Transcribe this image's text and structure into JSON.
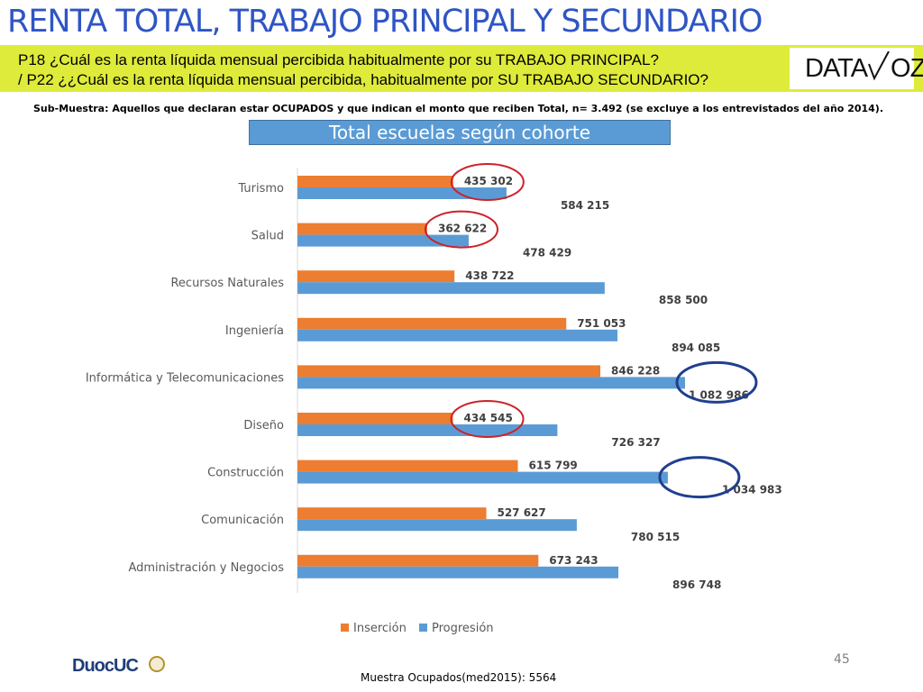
{
  "header": {
    "title": "RENTA TOTAL, TRABAJO PRINCIPAL Y SECUNDARIO",
    "question_1": "P18 ¿Cuál es la renta líquida mensual percibida habitualmente por su TRABAJO PRINCIPAL?",
    "question_2": "/ P22 ¿¿Cuál es la  renta líquida mensual percibida, habitualmente por  SU TRABAJO SECUNDARIO?",
    "logo": "DATAVOZ",
    "logo_main": "DATA",
    "logo_tail": "OZ"
  },
  "submuestra": "Sub-Muestra: Aquellos que declaran estar OCUPADOS y que indican el monto que reciben Total, n= 3.492 (se excluye a los entrevistados del año 2014).",
  "chart_data": {
    "type": "bar",
    "orientation": "horizontal",
    "title": "Total escuelas según cohorte",
    "categories": [
      "Turismo",
      "Salud",
      "Recursos Naturales",
      "Ingeniería",
      "Informática y Telecomunicaciones",
      "Diseño",
      "Construcción",
      "Comunicación",
      "Administración y Negocios"
    ],
    "series": [
      {
        "name": "Inserción",
        "color": "#ed7d31",
        "values": [
          435302,
          362622,
          438722,
          751053,
          846228,
          434545,
          615799,
          527627,
          673243
        ],
        "labels": [
          "435 302",
          "362 622",
          "438 722",
          "751 053",
          "846 228",
          "434 545",
          "615 799",
          "527 627",
          "673 243"
        ]
      },
      {
        "name": "Progresión",
        "color": "#5b9bd5",
        "values": [
          584215,
          478429,
          858500,
          894085,
          1082986,
          726327,
          1034983,
          780515,
          896748
        ],
        "labels": [
          "584 215",
          "478 429",
          "858 500",
          "894 085",
          "1 082 986",
          "726 327",
          "1 034 983",
          "780 515",
          "896 748"
        ]
      }
    ],
    "xlim": [
      0,
      1100000
    ],
    "grid": false,
    "legend": "bottom",
    "highlights": [
      {
        "category": "Turismo",
        "series": "Inserción",
        "color": "#cc2229"
      },
      {
        "category": "Salud",
        "series": "Inserción",
        "color": "#cc2229"
      },
      {
        "category": "Diseño",
        "series": "Inserción",
        "color": "#cc2229"
      },
      {
        "category": "Informática y Telecomunicaciones",
        "series": "Progresión",
        "color": "#1f3f8f"
      },
      {
        "category": "Construcción",
        "series": "Progresión",
        "color": "#1f3f8f"
      }
    ]
  },
  "page_number": "45",
  "footer": "Muestra Ocupados(med2015): 5564",
  "footer_logo": {
    "text": "DuocUC",
    "duoc": "Duoc",
    "uc": "UC"
  }
}
